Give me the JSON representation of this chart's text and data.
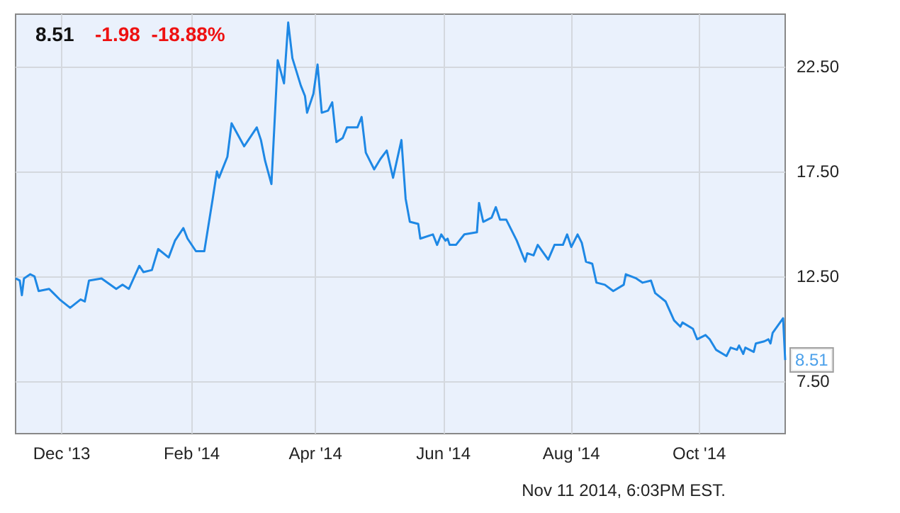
{
  "chart_data": {
    "type": "line",
    "title": "8.51",
    "subtitle": "-1.98  -18.88%",
    "annotations": [
      {
        "text": "8.51",
        "x": "2014-11-11",
        "y": 8.51
      },
      "Nov 11 2014, 6:03PM EST."
    ],
    "x": [
      "2013-11-09",
      "2013-11-11",
      "2013-11-12",
      "2013-11-13",
      "2013-11-16",
      "2013-11-18",
      "2013-11-20",
      "2013-11-25",
      "2013-11-27",
      "2013-11-30",
      "2013-12-05",
      "2013-12-10",
      "2013-12-12",
      "2013-12-14",
      "2013-12-20",
      "2013-12-27",
      "2013-12-30",
      "2014-01-02",
      "2014-01-07",
      "2014-01-09",
      "2014-01-13",
      "2014-01-16",
      "2014-01-21",
      "2014-01-24",
      "2014-01-28",
      "2014-01-30",
      "2014-02-03",
      "2014-02-07",
      "2014-02-11",
      "2014-02-13",
      "2014-02-14",
      "2014-02-18",
      "2014-02-20",
      "2014-02-26",
      "2014-02-28",
      "2014-03-04",
      "2014-03-06",
      "2014-03-08",
      "2014-03-11",
      "2014-03-14",
      "2014-03-17",
      "2014-03-19",
      "2014-03-21",
      "2014-03-25",
      "2014-03-27",
      "2014-03-28",
      "2014-03-31",
      "2014-04-02",
      "2014-04-04",
      "2014-04-07",
      "2014-04-09",
      "2014-04-11",
      "2014-04-14",
      "2014-04-16",
      "2014-04-21",
      "2014-04-23",
      "2014-04-25",
      "2014-04-29",
      "2014-05-02",
      "2014-05-05",
      "2014-05-08",
      "2014-05-12",
      "2014-05-14",
      "2014-05-16",
      "2014-05-20",
      "2014-05-21",
      "2014-05-27",
      "2014-05-29",
      "2014-05-31",
      "2014-06-02",
      "2014-06-03",
      "2014-06-04",
      "2014-06-07",
      "2014-06-11",
      "2014-06-17",
      "2014-06-18",
      "2014-06-20",
      "2014-06-24",
      "2014-06-26",
      "2014-06-28",
      "2014-07-01",
      "2014-07-06",
      "2014-07-10",
      "2014-07-11",
      "2014-07-14",
      "2014-07-16",
      "2014-07-21",
      "2014-07-24",
      "2014-07-28",
      "2014-07-30",
      "2014-08-01",
      "2014-08-04",
      "2014-08-06",
      "2014-08-08",
      "2014-08-11",
      "2014-08-13",
      "2014-08-17",
      "2014-08-21",
      "2014-08-26",
      "2014-08-27",
      "2014-09-01",
      "2014-09-04",
      "2014-09-08",
      "2014-09-10",
      "2014-09-15",
      "2014-09-19",
      "2014-09-22",
      "2014-09-23",
      "2014-09-28",
      "2014-09-30",
      "2014-10-04",
      "2014-10-06",
      "2014-10-09",
      "2014-10-14",
      "2014-10-16",
      "2014-10-19",
      "2014-10-20",
      "2014-10-22",
      "2014-10-23",
      "2014-10-27",
      "2014-10-28",
      "2014-11-01",
      "2014-11-03",
      "2014-11-04",
      "2014-11-05",
      "2014-11-10",
      "2014-11-11"
    ],
    "series": [
      {
        "color": "#1e88e5",
        "values": [
          12.4,
          12.3,
          11.6,
          12.4,
          12.6,
          12.5,
          11.8,
          11.9,
          11.7,
          11.4,
          11.0,
          11.4,
          11.3,
          12.3,
          12.4,
          11.9,
          12.1,
          11.9,
          13.0,
          12.7,
          12.8,
          13.8,
          13.4,
          14.2,
          14.8,
          14.3,
          13.7,
          13.7,
          16.2,
          17.5,
          17.2,
          18.2,
          19.8,
          18.7,
          19.0,
          19.6,
          19.0,
          18.0,
          16.9,
          22.8,
          21.7,
          24.6,
          22.9,
          21.6,
          21.1,
          20.3,
          21.2,
          22.6,
          20.3,
          20.4,
          20.8,
          18.9,
          19.1,
          19.6,
          19.6,
          20.1,
          18.4,
          17.6,
          18.1,
          18.5,
          17.2,
          19.0,
          16.2,
          15.1,
          15.0,
          14.3,
          14.5,
          14.0,
          14.5,
          14.2,
          14.3,
          14.0,
          14.0,
          14.5,
          14.6,
          16.0,
          15.1,
          15.3,
          15.8,
          15.2,
          15.2,
          14.2,
          13.2,
          13.6,
          13.5,
          14.0,
          13.3,
          14.0,
          14.0,
          14.5,
          13.9,
          14.5,
          14.1,
          13.2,
          13.1,
          12.2,
          12.1,
          11.8,
          12.1,
          12.6,
          12.4,
          12.2,
          12.3,
          11.7,
          11.3,
          10.4,
          10.1,
          10.3,
          10.0,
          9.5,
          9.7,
          9.5,
          9.0,
          8.7,
          9.1,
          9.0,
          9.2,
          8.8,
          9.1,
          8.9,
          9.3,
          9.4,
          9.5,
          9.3,
          9.8,
          10.5,
          8.51
        ]
      }
    ],
    "xlim": [
      "2013-11-09",
      "2014-11-11"
    ],
    "xticks": [
      {
        "value": "2013-12-01",
        "label": "Dec '13"
      },
      {
        "value": "2014-02-01",
        "label": "Feb '14"
      },
      {
        "value": "2014-04-01",
        "label": "Apr '14"
      },
      {
        "value": "2014-06-01",
        "label": "Jun '14"
      },
      {
        "value": "2014-08-01",
        "label": "Aug '14"
      },
      {
        "value": "2014-10-01",
        "label": "Oct '14"
      }
    ],
    "ylim": [
      5,
      25
    ],
    "yticks": [
      {
        "value": 7.5,
        "label": "7.50"
      },
      {
        "value": 12.5,
        "label": "12.50"
      },
      {
        "value": 17.5,
        "label": "17.50"
      },
      {
        "value": 22.5,
        "label": "22.50"
      }
    ],
    "grid": true,
    "marker": "none",
    "line_style": "solid"
  }
}
